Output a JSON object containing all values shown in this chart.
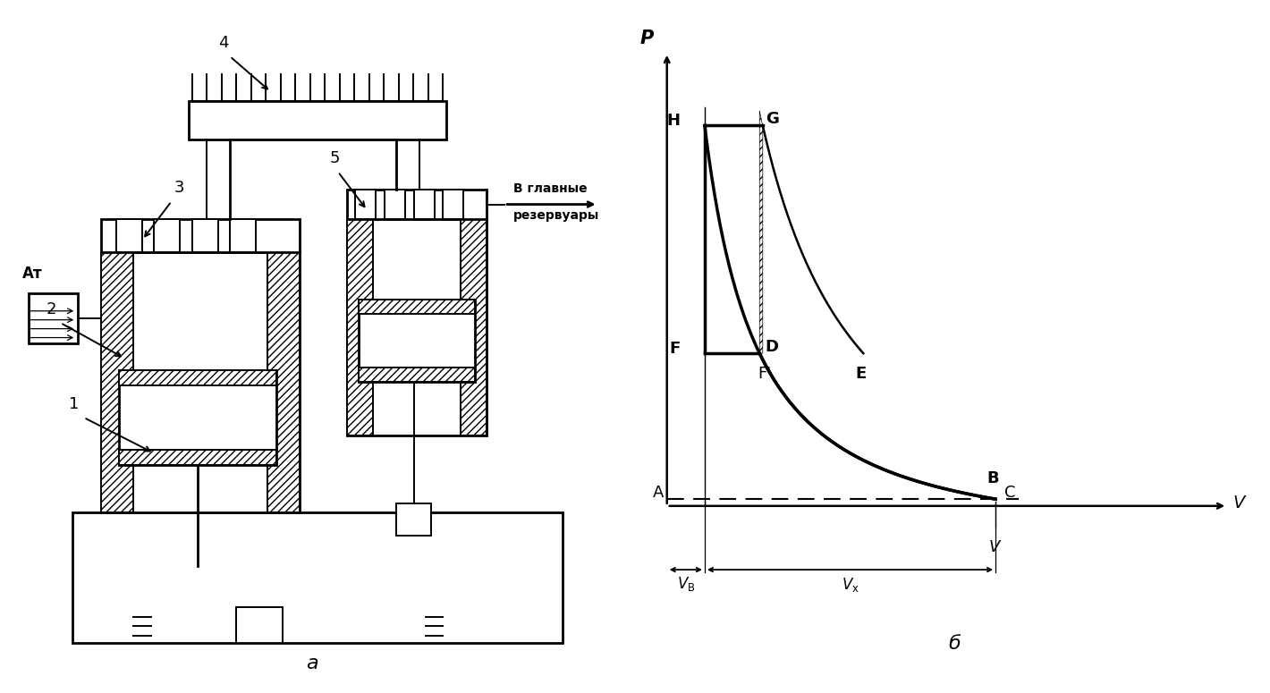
{
  "bg_color": "#ffffff",
  "line_color": "#000000",
  "label_P": "P",
  "label_A": "A",
  "label_B": "B",
  "label_C": "C",
  "label_F": "F",
  "label_Fp": "F'",
  "label_E": "E",
  "label_D": "D",
  "label_H": "H",
  "label_G": "G",
  "label_V_axis": "V",
  "label_At": "Ат",
  "label_main_res_1": "В главные",
  "label_main_res_2": "резервуары",
  "label_1": "1",
  "label_2": "2",
  "label_3": "3",
  "label_4": "4",
  "label_5": "5",
  "title_a": "а",
  "title_b": "б",
  "n_poly": 1.35,
  "Vb_x": 1.2,
  "P_max": 9.2,
  "P_mid": 4.2,
  "P_atm": 1.0,
  "VG_x": 2.2,
  "xmin": 0.0,
  "xmax": 10.5,
  "ymin": -2.8,
  "ymax": 11.5
}
